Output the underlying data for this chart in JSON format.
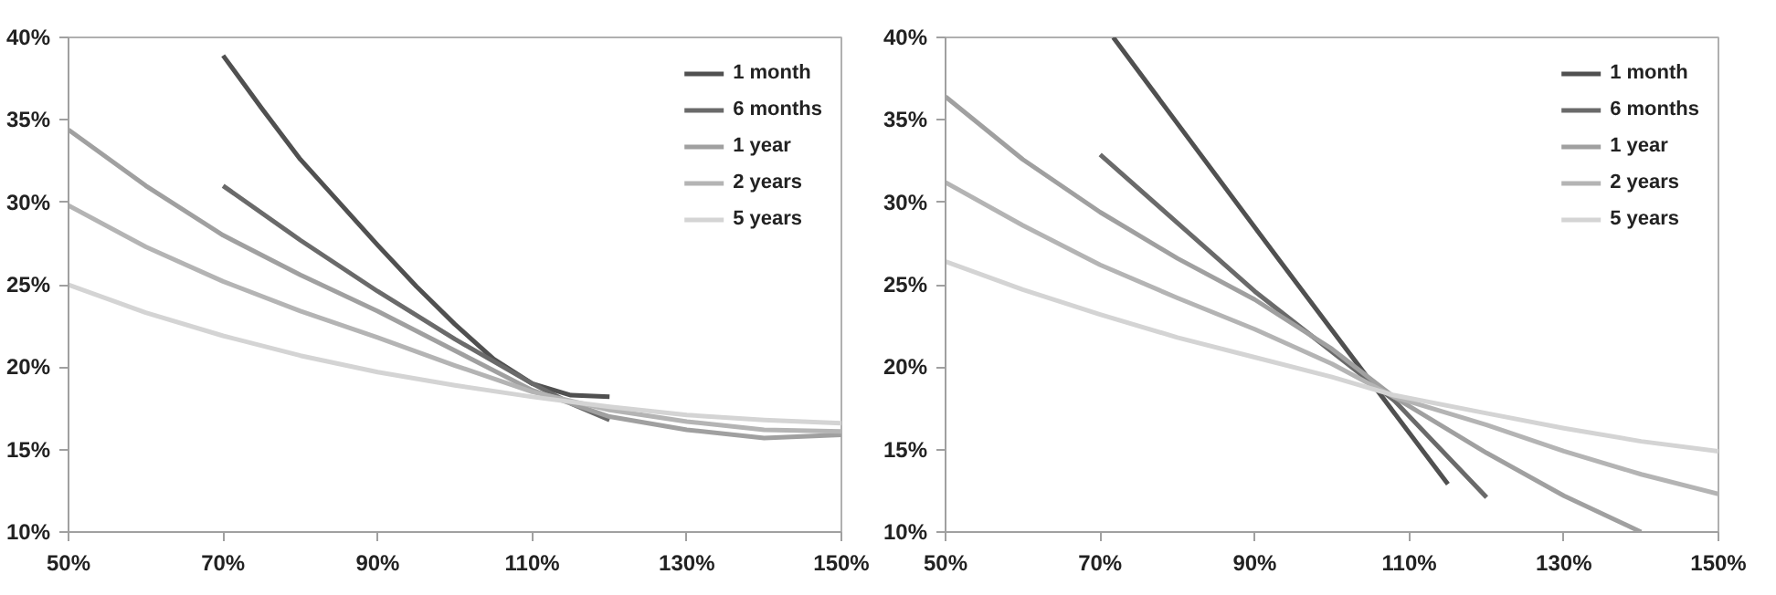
{
  "chart_data": [
    {
      "type": "line",
      "xlim": [
        50,
        150
      ],
      "ylim": [
        10,
        40
      ],
      "grid": false,
      "legend": "top right",
      "line_style": "solid",
      "marker": "none",
      "xticks": [
        {
          "value": 50,
          "label": "50%"
        },
        {
          "value": 70,
          "label": "70%"
        },
        {
          "value": 90,
          "label": "90%"
        },
        {
          "value": 110,
          "label": "110%"
        },
        {
          "value": 130,
          "label": "130%"
        },
        {
          "value": 150,
          "label": "150%"
        }
      ],
      "yticks": [
        {
          "value": 10,
          "label": "10%"
        },
        {
          "value": 15,
          "label": "15%"
        },
        {
          "value": 20,
          "label": "20%"
        },
        {
          "value": 25,
          "label": "25%"
        },
        {
          "value": 30,
          "label": "30%"
        },
        {
          "value": 35,
          "label": "35%"
        },
        {
          "value": 40,
          "label": "40%"
        }
      ],
      "series": [
        {
          "name": "1 month",
          "color": "#505050",
          "x": [
            70,
            75,
            80,
            85,
            90,
            95,
            100,
            105,
            110,
            115,
            120
          ],
          "values": [
            38.9,
            35.7,
            32.6,
            30.0,
            27.4,
            24.9,
            22.6,
            20.5,
            19.0,
            18.3,
            18.2
          ]
        },
        {
          "name": "6 months",
          "color": "#6a6a6a",
          "x": [
            70,
            80,
            90,
            100,
            110,
            115,
            120
          ],
          "values": [
            31.0,
            27.7,
            24.6,
            21.7,
            19.0,
            17.8,
            16.8
          ]
        },
        {
          "name": "1 year",
          "color": "#a0a0a0",
          "x": [
            50,
            60,
            70,
            80,
            90,
            100,
            110,
            120,
            130,
            140,
            150
          ],
          "values": [
            34.4,
            31.0,
            28.0,
            25.6,
            23.4,
            21.0,
            18.6,
            17.0,
            16.2,
            15.7,
            15.9
          ]
        },
        {
          "name": "2 years",
          "color": "#b4b4b4",
          "x": [
            50,
            60,
            70,
            80,
            90,
            100,
            110,
            120,
            130,
            140,
            150
          ],
          "values": [
            29.8,
            27.3,
            25.2,
            23.4,
            21.8,
            20.1,
            18.5,
            17.4,
            16.7,
            16.2,
            16.1
          ]
        },
        {
          "name": "5 years",
          "color": "#d4d4d4",
          "x": [
            50,
            60,
            70,
            80,
            90,
            100,
            110,
            120,
            130,
            140,
            150
          ],
          "values": [
            25.0,
            23.3,
            21.9,
            20.7,
            19.7,
            18.9,
            18.2,
            17.6,
            17.1,
            16.8,
            16.6
          ]
        }
      ]
    },
    {
      "type": "line",
      "xlim": [
        50,
        150
      ],
      "ylim": [
        10,
        40
      ],
      "grid": false,
      "legend": "top right",
      "line_style": "solid",
      "marker": "none",
      "xticks": [
        {
          "value": 50,
          "label": "50%"
        },
        {
          "value": 70,
          "label": "70%"
        },
        {
          "value": 90,
          "label": "90%"
        },
        {
          "value": 110,
          "label": "110%"
        },
        {
          "value": 130,
          "label": "130%"
        },
        {
          "value": 150,
          "label": "150%"
        }
      ],
      "yticks": [
        {
          "value": 10,
          "label": "10%"
        },
        {
          "value": 15,
          "label": "15%"
        },
        {
          "value": 20,
          "label": "20%"
        },
        {
          "value": 25,
          "label": "25%"
        },
        {
          "value": 30,
          "label": "30%"
        },
        {
          "value": 35,
          "label": "35%"
        },
        {
          "value": 40,
          "label": "40%"
        }
      ],
      "series": [
        {
          "name": "1 month",
          "color": "#505050",
          "x": [
            71.7,
            93,
            115
          ],
          "values": [
            40,
            26.6,
            12.9
          ]
        },
        {
          "name": "6 months",
          "color": "#6a6a6a",
          "x": [
            70,
            90,
            108,
            120
          ],
          "values": [
            32.9,
            24.6,
            18.0,
            12.1
          ]
        },
        {
          "name": "1 year",
          "color": "#a0a0a0",
          "x": [
            50,
            60,
            70,
            80,
            90,
            100,
            108,
            120,
            130,
            140
          ],
          "values": [
            36.4,
            32.6,
            29.4,
            26.6,
            24.1,
            21.1,
            18.2,
            14.8,
            12.2,
            10.0
          ]
        },
        {
          "name": "2 years",
          "color": "#b4b4b4",
          "x": [
            50,
            60,
            70,
            80,
            90,
            100,
            108,
            120,
            130,
            140,
            150
          ],
          "values": [
            31.2,
            28.6,
            26.2,
            24.2,
            22.3,
            20.2,
            18.2,
            16.5,
            14.9,
            13.5,
            12.3
          ]
        },
        {
          "name": "5 years",
          "color": "#d4d4d4",
          "x": [
            50,
            60,
            70,
            80,
            90,
            100,
            108,
            120,
            130,
            140,
            150
          ],
          "values": [
            26.4,
            24.7,
            23.2,
            21.8,
            20.6,
            19.4,
            18.3,
            17.2,
            16.3,
            15.5,
            14.9
          ]
        }
      ]
    }
  ]
}
